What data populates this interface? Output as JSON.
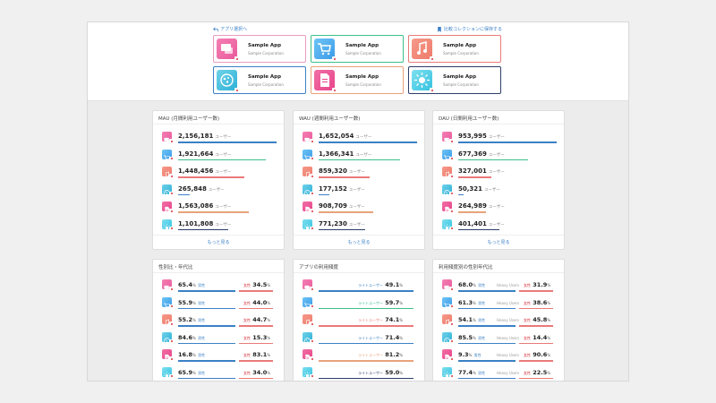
{
  "nav": {
    "back_label": "アプリ選択へ",
    "save_label": "比較コレクションに保存する"
  },
  "apps": [
    {
      "name": "Sample App",
      "company": "Sample Corporation",
      "icon": "chat-icon",
      "color": "#ea5a9b",
      "color2": "#f47fb4",
      "border": "#e99bbd"
    },
    {
      "name": "Sample App",
      "company": "Sample Corporation",
      "icon": "cart-icon",
      "color": "#3d9be8",
      "color2": "#6cc4f5",
      "border": "#3cc08a"
    },
    {
      "name": "Sample App",
      "company": "Sample Corporation",
      "icon": "music-icon",
      "color": "#ef7b6c",
      "color2": "#f59a8a",
      "border": "#ea7a7a"
    },
    {
      "name": "Sample App",
      "company": "Sample Corporation",
      "icon": "globe-icon",
      "color": "#2fb0d6",
      "color2": "#6fd2ea",
      "border": "#3b80c6"
    },
    {
      "name": "Sample App",
      "company": "Sample Corporation",
      "icon": "document-icon",
      "color": "#e8458a",
      "color2": "#f16fa6",
      "border": "#e9a27a"
    },
    {
      "name": "Sample App",
      "company": "Sample Corporation",
      "icon": "sun-icon",
      "color": "#37c2e0",
      "color2": "#7ee0ef",
      "border": "#2c3e6a"
    }
  ],
  "bar_colors": [
    "#3b80c6",
    "#3cc08a",
    "#ea7a7a",
    "#3b80c6",
    "#e9a27a",
    "#2c3e6a"
  ],
  "mau": {
    "title": "MAU (月間利用ユーザー数)",
    "unit": "ユーザー",
    "more": "もっと見る",
    "rows": [
      {
        "value": "2,156,181",
        "ratio": 1.0
      },
      {
        "value": "1,921,664",
        "ratio": 0.89
      },
      {
        "value": "1,448,456",
        "ratio": 0.67
      },
      {
        "value": "265,848",
        "ratio": 0.12
      },
      {
        "value": "1,563,086",
        "ratio": 0.72
      },
      {
        "value": "1,101,808",
        "ratio": 0.51
      }
    ]
  },
  "wau": {
    "title": "WAU (週間利用ユーザー数)",
    "unit": "ユーザー",
    "more": "もっと見る",
    "rows": [
      {
        "value": "1,652,054",
        "ratio": 1.0
      },
      {
        "value": "1,366,341",
        "ratio": 0.83
      },
      {
        "value": "859,320",
        "ratio": 0.52
      },
      {
        "value": "177,152",
        "ratio": 0.11
      },
      {
        "value": "908,709",
        "ratio": 0.55
      },
      {
        "value": "771,230",
        "ratio": 0.47
      }
    ]
  },
  "dau": {
    "title": "DAU (日間利用ユーザー数)",
    "unit": "ユーザー",
    "more": "もっと見る",
    "rows": [
      {
        "value": "953,995",
        "ratio": 1.0
      },
      {
        "value": "677,369",
        "ratio": 0.71
      },
      {
        "value": "327,001",
        "ratio": 0.34
      },
      {
        "value": "50,321",
        "ratio": 0.05
      },
      {
        "value": "264,989",
        "ratio": 0.28
      },
      {
        "value": "401,401",
        "ratio": 0.42
      }
    ]
  },
  "gender": {
    "title": "性別比・年代比",
    "male": "男性",
    "female": "女性",
    "rows": [
      {
        "m": "65.4",
        "f": "34.5"
      },
      {
        "m": "55.9",
        "f": "44.0"
      },
      {
        "m": "55.2",
        "f": "44.7"
      },
      {
        "m": "84.6",
        "f": "15.3"
      },
      {
        "m": "16.8",
        "f": "83.1"
      },
      {
        "m": "65.9",
        "f": "34.0"
      }
    ]
  },
  "freq": {
    "title": "アプリの利用頻度",
    "label": "ライトユーザー",
    "rows": [
      "49.1",
      "59.7",
      "74.1",
      "71.4",
      "81.2",
      "59.0"
    ]
  },
  "heavy": {
    "title": "利用頻度別の性別年代比",
    "male": "男性",
    "female": "女性",
    "sub": "Heavy Users",
    "rows": [
      {
        "m": "68.0",
        "f": "31.9"
      },
      {
        "m": "61.3",
        "f": "38.6"
      },
      {
        "m": "54.1",
        "f": "45.8"
      },
      {
        "m": "85.5",
        "f": "14.4"
      },
      {
        "m": "9.3",
        "f": "90.6"
      },
      {
        "m": "77.4",
        "f": "22.5"
      }
    ]
  },
  "percent": "%"
}
